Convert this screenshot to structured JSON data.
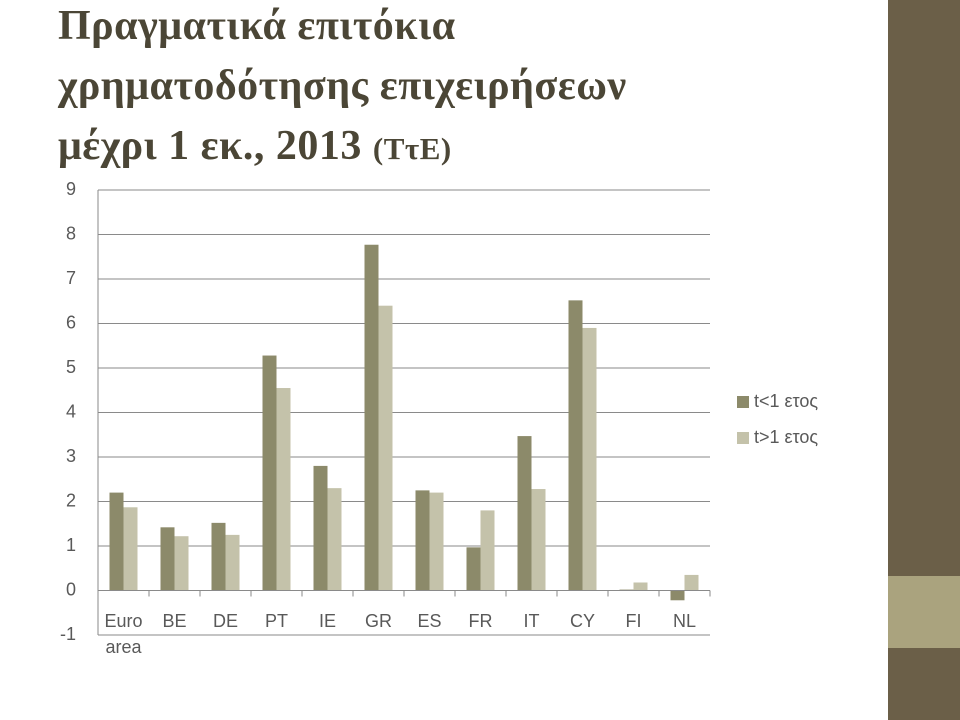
{
  "chart_data": {
    "type": "bar",
    "title_lines": [
      "Πραγματικά επιτόκια",
      "χρηματοδότησης επιχειρήσεων",
      "μέχρι 1 εκ., 2013"
    ],
    "source": "(ΤτΕ)",
    "categories": [
      "Euro area",
      "BE",
      "DE",
      "PT",
      "IE",
      "GR",
      "ES",
      "FR",
      "IT",
      "CY",
      "FI",
      "NL"
    ],
    "series": [
      {
        "name": "t<1 ετος",
        "color": "#8c8a6a",
        "values": [
          2.2,
          1.42,
          1.52,
          5.28,
          2.8,
          7.77,
          2.25,
          0.97,
          3.47,
          6.52,
          0.02,
          -0.22
        ]
      },
      {
        "name": "t>1 ετος",
        "color": "#c4c2aa",
        "values": [
          1.87,
          1.22,
          1.25,
          4.55,
          2.3,
          6.4,
          2.2,
          1.8,
          2.28,
          5.9,
          0.18,
          0.35
        ]
      }
    ],
    "ylim": [
      -1,
      9
    ],
    "yticks": [
      -1,
      0,
      1,
      2,
      3,
      4,
      5,
      6,
      7,
      8,
      9
    ],
    "grid": true,
    "legend": "right"
  }
}
